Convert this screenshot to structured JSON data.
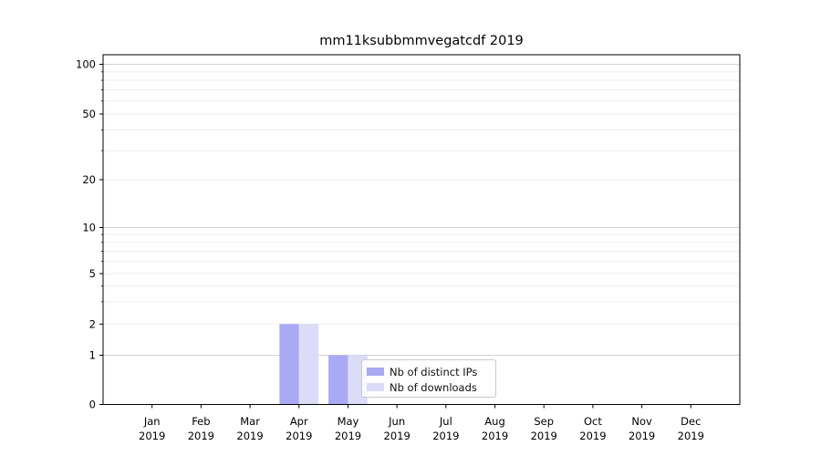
{
  "chart_data": {
    "type": "bar",
    "title": "mm11ksubbmmvegatcdf 2019",
    "x_categories": [
      "Jan",
      "Feb",
      "Mar",
      "Apr",
      "May",
      "Jun",
      "Jul",
      "Aug",
      "Sep",
      "Oct",
      "Nov",
      "Dec"
    ],
    "x_year_label": "2019",
    "series": [
      {
        "name": "Nb of distinct IPs",
        "color": "#a9a9f4",
        "values": [
          0,
          0,
          0,
          2,
          1,
          0,
          0,
          0,
          0,
          0,
          0,
          0
        ]
      },
      {
        "name": "Nb of downloads",
        "color": "#dcdcf8",
        "values": [
          0,
          0,
          0,
          2,
          1,
          0,
          0,
          0,
          0,
          0,
          0,
          0
        ]
      }
    ],
    "y_axis": {
      "scale": "symlog",
      "tick_labels": [
        "0",
        "1",
        "2",
        "5",
        "10",
        "20",
        "50",
        "100"
      ],
      "tick_values": [
        0,
        1,
        2,
        5,
        10,
        20,
        50,
        100
      ],
      "range": [
        0,
        100
      ]
    },
    "grid": "horizontal, log minor + major",
    "legend_position": "lower area overlapping May-Jun bars"
  }
}
